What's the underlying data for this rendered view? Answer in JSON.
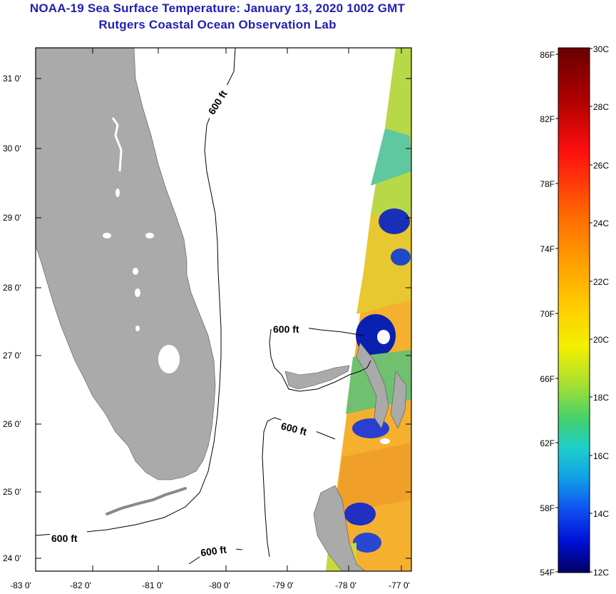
{
  "title": {
    "line1": "NOAA-19 Sea Surface Temperature:  January 13, 2020 1002 GMT",
    "line2": "Rutgers Coastal Ocean Observation Lab"
  },
  "map": {
    "lat_labels": [
      "31 0'",
      "30 0'",
      "29 0'",
      "28 0'",
      "27 0'",
      "26 0'",
      "25 0'",
      "24 0'"
    ],
    "lon_labels": [
      "-83 0'",
      "-82 0'",
      "-81 0'",
      "-80 0'",
      "-79 0'",
      "-78 0'",
      "-77 0'"
    ],
    "contour_labels": [
      "600 ft",
      "600 ft",
      "600 ft",
      "600 ft",
      "600 ft"
    ]
  },
  "colorbar": {
    "fahrenheit_labels": [
      "86F",
      "82F",
      "78F",
      "74F",
      "70F",
      "66F",
      "62F",
      "58F",
      "54F"
    ],
    "celsius_labels": [
      "30C",
      "28C",
      "26C",
      "24C",
      "22C",
      "20C",
      "18C",
      "16C",
      "14C",
      "12C"
    ]
  },
  "colors": {
    "title": "#1f1fb4",
    "land": "#aaaaaa"
  }
}
